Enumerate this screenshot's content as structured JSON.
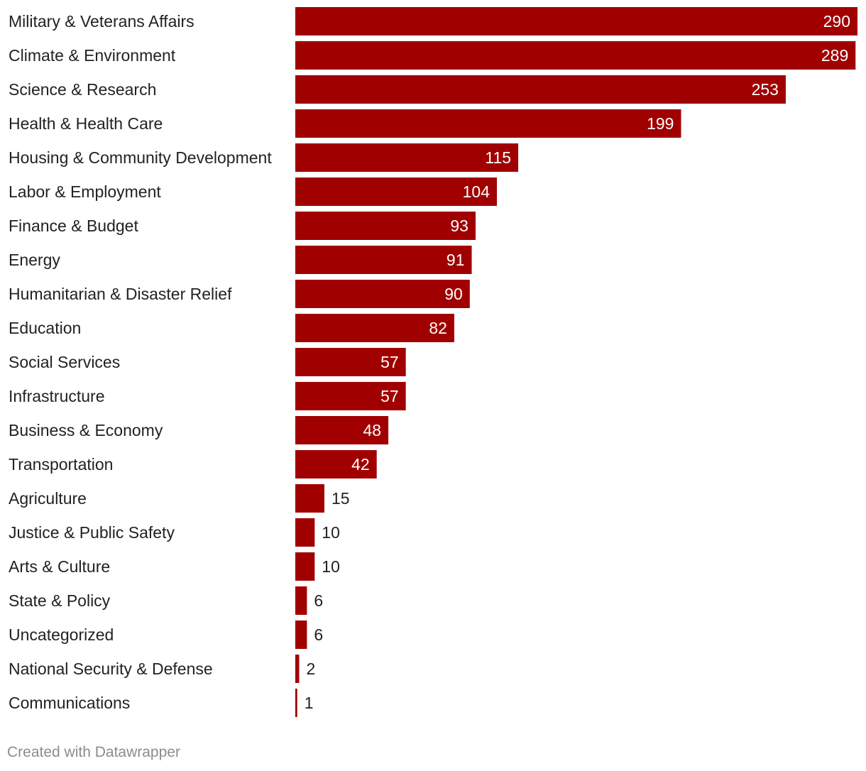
{
  "chart_data": {
    "type": "bar",
    "orientation": "horizontal",
    "categories": [
      "Military & Veterans Affairs",
      "Climate & Environment",
      "Science & Research",
      "Health & Health Care",
      "Housing & Community Development",
      "Labor & Employment",
      "Finance & Budget",
      "Energy",
      "Humanitarian & Disaster Relief",
      "Education",
      "Social Services",
      "Infrastructure",
      "Business & Economy",
      "Transportation",
      "Agriculture",
      "Justice & Public Safety",
      "Arts & Culture",
      "State & Policy",
      "Uncategorized",
      "National Security & Defense",
      "Communications"
    ],
    "values": [
      290,
      289,
      253,
      199,
      115,
      104,
      93,
      91,
      90,
      82,
      57,
      57,
      48,
      42,
      15,
      10,
      10,
      6,
      6,
      2,
      1
    ],
    "xlim": [
      0,
      290
    ],
    "bar_color": "#a10000",
    "label_inside_color": "#ffffff",
    "label_outside_color": "#222222",
    "title": "",
    "xlabel": "",
    "ylabel": ""
  },
  "footer": {
    "credit": "Created with Datawrapper"
  }
}
